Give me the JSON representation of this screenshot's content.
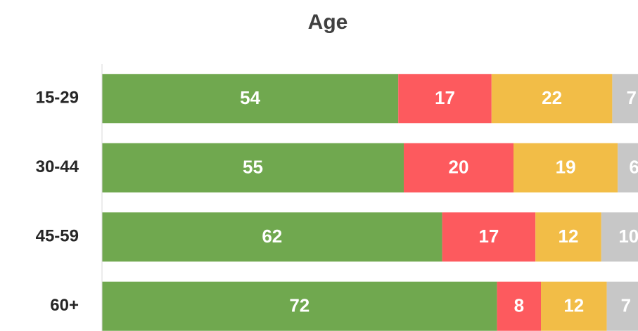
{
  "chart_data": {
    "type": "stacked_barh",
    "title": "Age",
    "categories": [
      "15-29",
      "30-44",
      "45-59",
      "60+"
    ],
    "series": [
      {
        "color": "#70a84f",
        "values": [
          54,
          55,
          62,
          72
        ]
      },
      {
        "color": "#fd5a5e",
        "values": [
          17,
          20,
          17,
          8
        ]
      },
      {
        "color": "#f2bd47",
        "values": [
          22,
          19,
          12,
          12
        ]
      },
      {
        "color": "#c7c7c7",
        "values": [
          7,
          6,
          10,
          7
        ]
      }
    ],
    "xlim": [
      0,
      100
    ]
  }
}
